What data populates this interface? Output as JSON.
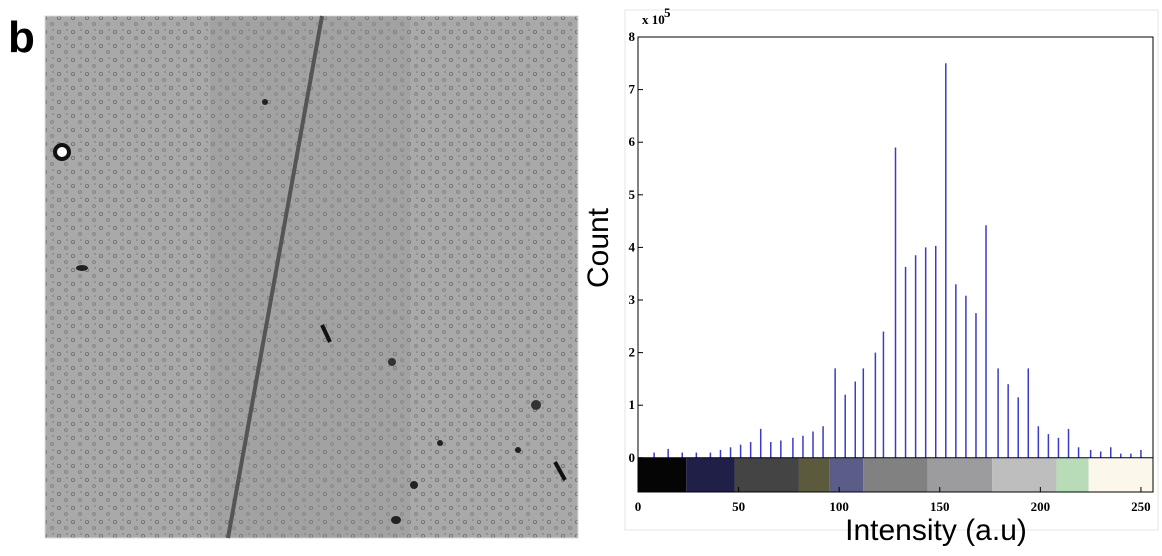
{
  "panel_label": "b",
  "chart_data": {
    "type": "stem",
    "y_multiplier": "x 10",
    "y_multiplier_exponent": "5",
    "y_label": "Count",
    "x_label": "Intensity (a.u)",
    "color": "#3a3acc",
    "x": [
      8,
      15,
      22,
      29,
      36,
      41,
      46,
      51,
      56,
      61,
      66,
      71,
      77,
      82,
      87,
      92,
      98,
      103,
      108,
      112,
      118,
      122,
      128,
      133,
      138,
      143,
      148,
      153,
      158,
      163,
      168,
      173,
      179,
      184,
      189,
      194,
      199,
      204,
      209,
      214,
      219,
      225,
      230,
      235,
      240,
      245,
      250
    ],
    "values": [
      0.1,
      0.17,
      0.1,
      0.1,
      0.1,
      0.15,
      0.2,
      0.25,
      0.3,
      0.55,
      0.3,
      0.33,
      0.38,
      0.42,
      0.5,
      0.6,
      1.7,
      1.2,
      1.45,
      1.7,
      2.0,
      2.4,
      5.9,
      3.63,
      3.85,
      4.0,
      4.03,
      7.5,
      3.3,
      3.08,
      2.75,
      4.42,
      1.7,
      1.4,
      1.15,
      1.7,
      0.6,
      0.45,
      0.38,
      0.55,
      0.2,
      0.15,
      0.12,
      0.2,
      0.08,
      0.08,
      0.15
    ],
    "colorbar": [
      {
        "start": 0,
        "end": 24,
        "color": "#050505"
      },
      {
        "start": 24,
        "end": 48,
        "color": "#1f1f48"
      },
      {
        "start": 48,
        "end": 80,
        "color": "#444444"
      },
      {
        "start": 80,
        "end": 95,
        "color": "#5b5a3c"
      },
      {
        "start": 95,
        "end": 112,
        "color": "#5c5c88"
      },
      {
        "start": 112,
        "end": 144,
        "color": "#818181"
      },
      {
        "start": 144,
        "end": 176,
        "color": "#9c9c9e"
      },
      {
        "start": 176,
        "end": 208,
        "color": "#bebebe"
      },
      {
        "start": 208,
        "end": 224,
        "color": "#b8dcb8"
      },
      {
        "start": 224,
        "end": 256,
        "color": "#fbf7ea"
      }
    ],
    "xlim": [
      0,
      256
    ],
    "ylim": [
      -0.65,
      8
    ],
    "xticks": [
      0,
      50,
      100,
      150,
      200,
      250
    ],
    "yticks": [
      0,
      1,
      2,
      3,
      4,
      5,
      6,
      7,
      8
    ]
  }
}
